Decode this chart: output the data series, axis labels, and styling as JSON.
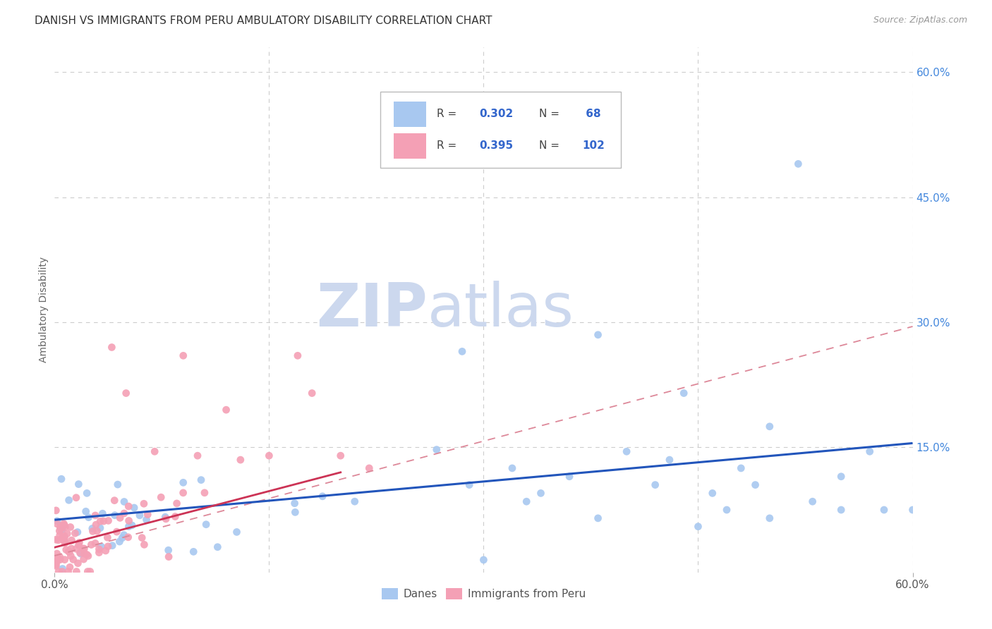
{
  "title": "DANISH VS IMMIGRANTS FROM PERU AMBULATORY DISABILITY CORRELATION CHART",
  "source": "Source: ZipAtlas.com",
  "ylabel": "Ambulatory Disability",
  "xlim": [
    0.0,
    0.6
  ],
  "ylim": [
    0.0,
    0.63
  ],
  "danes_color": "#a8c8f0",
  "peru_color": "#f4a0b5",
  "danes_R": 0.302,
  "danes_N": 68,
  "peru_R": 0.395,
  "peru_N": 102,
  "trend_danes_color": "#2255bb",
  "trend_peru_solid_color": "#cc3355",
  "trend_peru_dash_color": "#dd8899",
  "watermark_zip_color": "#ccd8ee",
  "watermark_atlas_color": "#ccd8ee",
  "legend_color": "#3366cc",
  "right_tick_color": "#4488dd",
  "grid_color": "#cccccc",
  "danes_seed": 7,
  "peru_seed": 13,
  "danes_scatter": [
    [
      0.52,
      0.49
    ],
    [
      0.38,
      0.285
    ],
    [
      0.285,
      0.265
    ],
    [
      0.44,
      0.215
    ],
    [
      0.5,
      0.175
    ],
    [
      0.57,
      0.145
    ],
    [
      0.4,
      0.145
    ],
    [
      0.48,
      0.125
    ],
    [
      0.55,
      0.115
    ],
    [
      0.32,
      0.125
    ],
    [
      0.36,
      0.115
    ],
    [
      0.42,
      0.105
    ],
    [
      0.29,
      0.105
    ],
    [
      0.46,
      0.095
    ],
    [
      0.53,
      0.085
    ],
    [
      0.43,
      0.135
    ],
    [
      0.49,
      0.105
    ],
    [
      0.34,
      0.095
    ],
    [
      0.58,
      0.075
    ],
    [
      0.62,
      0.085
    ],
    [
      0.5,
      0.065
    ],
    [
      0.55,
      0.075
    ],
    [
      0.6,
      0.075
    ],
    [
      0.47,
      0.075
    ],
    [
      0.3,
      0.015
    ],
    [
      0.45,
      0.055
    ],
    [
      0.38,
      0.065
    ],
    [
      0.33,
      0.085
    ]
  ],
  "peru_scatter": [
    [
      0.04,
      0.27
    ],
    [
      0.09,
      0.26
    ],
    [
      0.17,
      0.26
    ],
    [
      0.05,
      0.215
    ],
    [
      0.12,
      0.195
    ],
    [
      0.15,
      0.14
    ],
    [
      0.18,
      0.215
    ],
    [
      0.2,
      0.14
    ],
    [
      0.1,
      0.14
    ],
    [
      0.07,
      0.145
    ],
    [
      0.13,
      0.135
    ],
    [
      0.22,
      0.125
    ]
  ]
}
